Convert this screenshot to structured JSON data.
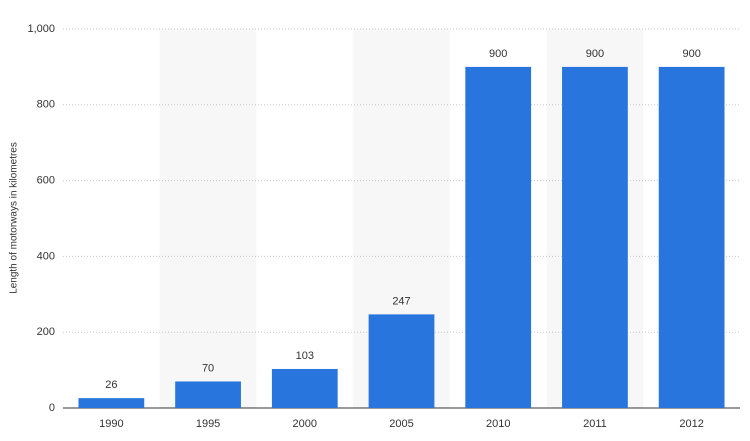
{
  "chart_data": {
    "type": "bar",
    "y_label": "Length of motorways in kilometres",
    "categories": [
      "1990",
      "1995",
      "2000",
      "2005",
      "2010",
      "2011",
      "2012"
    ],
    "values": [
      26,
      70,
      103,
      247,
      900,
      900,
      900
    ],
    "color": "#2876dd",
    "ylim": [
      0,
      1000
    ],
    "yticks": [
      0,
      200,
      400,
      600,
      800,
      {
        "value": 1000,
        "label": "1,000"
      }
    ],
    "grid": true
  }
}
